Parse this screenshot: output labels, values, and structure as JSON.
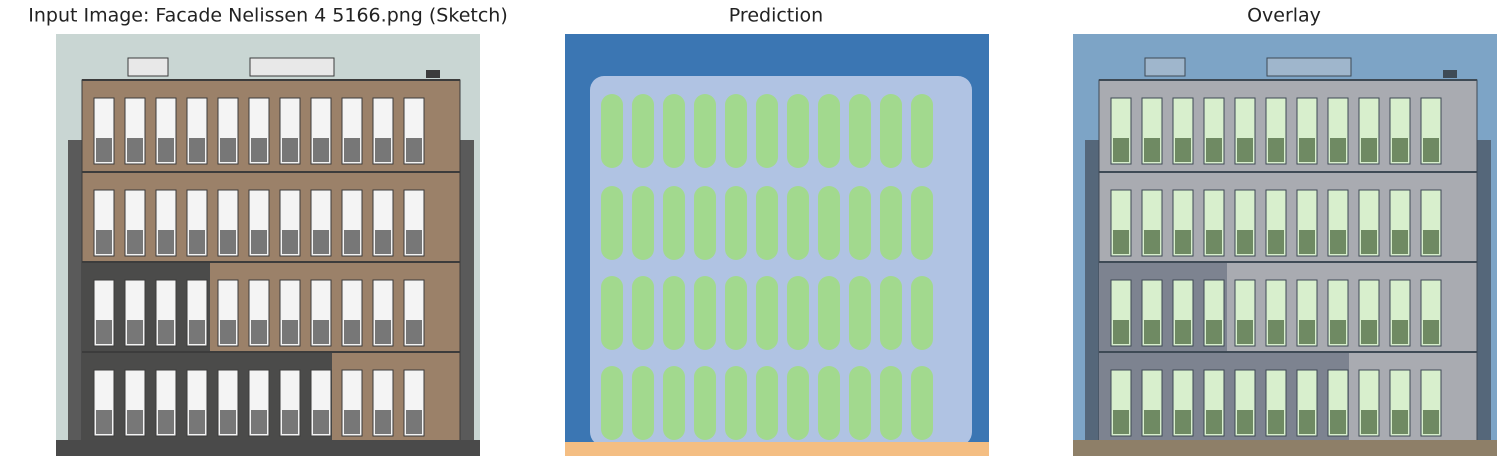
{
  "panels": [
    {
      "title": "Input Image: Facade Nelissen 4 5166.png (Sketch)"
    },
    {
      "title": "Prediction"
    },
    {
      "title": "Overlay"
    }
  ]
}
